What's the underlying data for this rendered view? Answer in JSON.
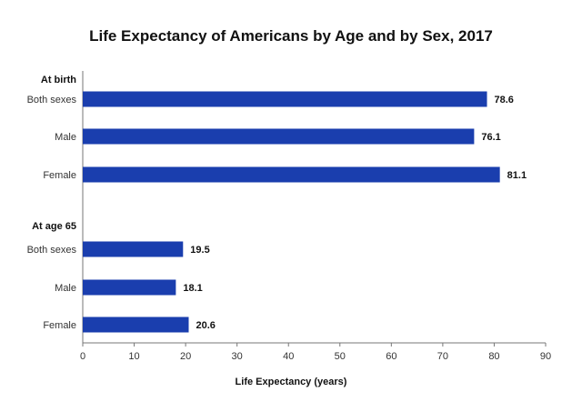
{
  "chart_data": {
    "type": "bar",
    "orientation": "horizontal",
    "title": "Life Expectancy of Americans by Age and by Sex, 2017",
    "xlabel": "Life Expectancy (years)",
    "ylabel": "",
    "xlim": [
      0,
      90
    ],
    "xticks": [
      0,
      10,
      20,
      30,
      40,
      50,
      60,
      70,
      80,
      90
    ],
    "grid": false,
    "bar_color": "#1a3eae",
    "groups": [
      {
        "label": "At birth",
        "categories": [
          "Both sexes",
          "Male",
          "Female"
        ],
        "values": [
          78.6,
          76.1,
          81.1
        ],
        "value_labels": [
          "78.6",
          "76.1",
          "81.1"
        ]
      },
      {
        "label": "At age 65",
        "categories": [
          "Both sexes",
          "Male",
          "Female"
        ],
        "values": [
          19.5,
          18.1,
          20.6
        ],
        "value_labels": [
          "19.5",
          "18.1",
          "20.6"
        ]
      }
    ]
  }
}
